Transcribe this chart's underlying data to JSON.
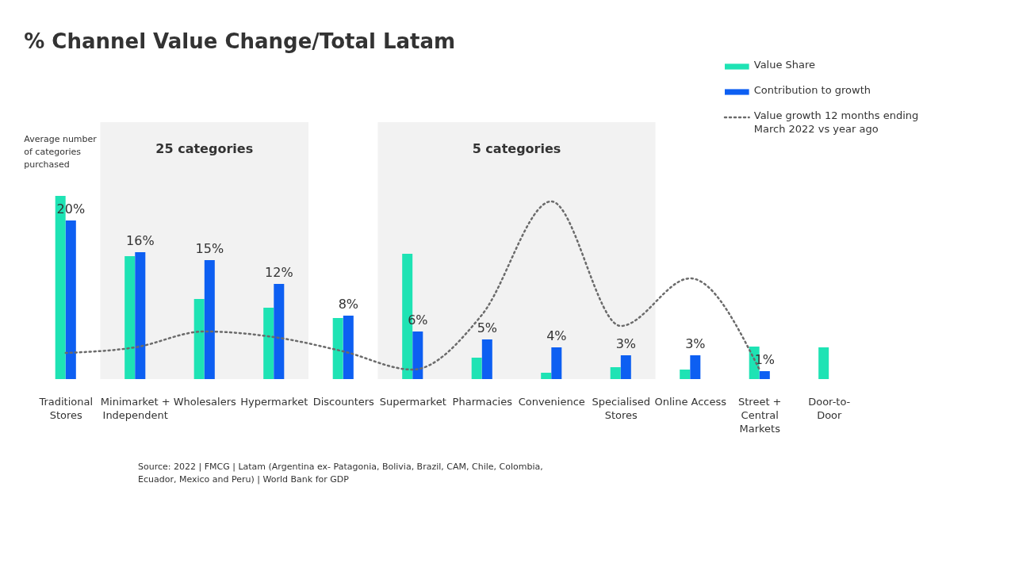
{
  "chart_data": {
    "type": "bar",
    "title": "% Channel Value Change/Total Latam",
    "grid": false,
    "legend": "top right",
    "tick_labels": "x",
    "ylim": [
      0,
      40
    ],
    "categories": [
      "Traditional\nStores",
      "Minimarket +\nIndependent",
      "Wholesalers",
      "Hypermarket",
      "Discounters",
      "Supermarket",
      "Pharmacies",
      "Convenience",
      "Specialised\nStores",
      "Online Access",
      "Street +\nCentral\nMarkets",
      "Door-to-\nDoor"
    ],
    "series": [
      {
        "name": "Value Share",
        "color": "#1ee3b4",
        "values": [
          23.1,
          15.5,
          10.1,
          9.0,
          7.7,
          15.8,
          2.7,
          0.8,
          1.5,
          1.2,
          4.1,
          4.0
        ]
      },
      {
        "name": "Contribution to growth",
        "color": "#0d5ff2",
        "values": [
          20,
          16,
          15,
          12,
          8,
          6,
          5,
          4,
          3,
          3,
          1,
          null
        ],
        "value_labels": [
          "20%",
          "16%",
          "15%",
          "12%",
          "8%",
          "6%",
          "5%",
          "4%",
          "3%",
          "3%",
          "1%",
          null
        ]
      },
      {
        "name": "Value growth 12 months ending\nMarch 2022 vs year ago",
        "type": "line",
        "color": "#6b6b6b",
        "line_style": "dotted",
        "marker": "none",
        "values": [
          3.3,
          4.0,
          6.0,
          5.3,
          3.5,
          1.2,
          8.1,
          22.4,
          6.7,
          12.7,
          1.2,
          null
        ]
      }
    ],
    "bands": [
      {
        "axis": "x",
        "from": "Minimarket +\nIndependent",
        "to": "Hypermarket",
        "label": "25 categories",
        "color": "#f2f2f2"
      },
      {
        "axis": "x",
        "from": "Supermarket",
        "to": "Specialised\nStores",
        "label": "5 categories",
        "color": "#f2f2f2"
      }
    ],
    "annotations": [
      "Average number\nof categories\npurchased",
      "Source: 2022 | FMCG | Latam (Argentina ex- Patagonia, Bolivia, Brazil, CAM, Chile, Colombia,\nEcuador, Mexico and Peru) | World Bank for GDP"
    ]
  }
}
